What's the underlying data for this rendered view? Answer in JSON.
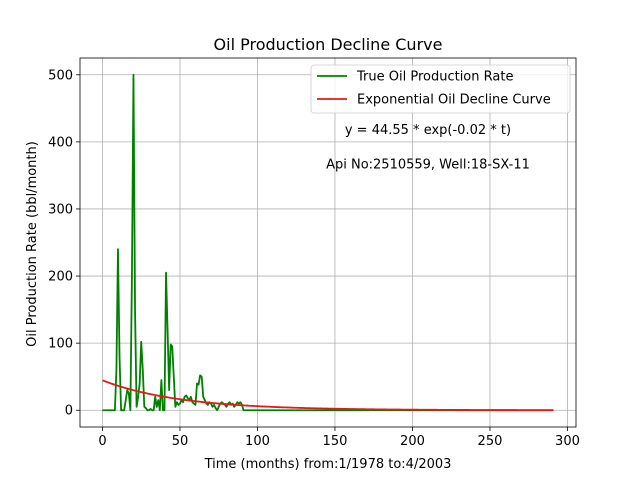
{
  "chart_data": {
    "type": "line",
    "title": "Oil Production Decline Curve",
    "xlabel": "Time (months) from:1/1978 to:4/2003",
    "ylabel": "Oil Production Rate (bbl/month)",
    "xlim": [
      -14.5,
      305.5
    ],
    "ylim": [
      -25,
      525
    ],
    "xticks": [
      0,
      50,
      100,
      150,
      200,
      250,
      300
    ],
    "yticks": [
      0,
      100,
      200,
      300,
      400,
      500
    ],
    "grid": true,
    "legend_position": "top-right",
    "annotations": [
      {
        "text": "y = 44.55 * exp(-0.02 * t)",
        "x": 210,
        "y": 412
      },
      {
        "text": "Api No:2510559, Well:18-SX-11",
        "x": 210,
        "y": 360
      }
    ],
    "series": [
      {
        "name": "True Oil Production Rate",
        "color": "#008000",
        "x": [
          0,
          8,
          9,
          10,
          11,
          12,
          13,
          14,
          15,
          16,
          17,
          18,
          19,
          20,
          21,
          22,
          23,
          24,
          25,
          26,
          27,
          28,
          29,
          30,
          31,
          32,
          33,
          34,
          35,
          36,
          37,
          38,
          39,
          40,
          41,
          42,
          43,
          44,
          45,
          46,
          47,
          48,
          49,
          50,
          51,
          52,
          53,
          54,
          55,
          56,
          57,
          58,
          59,
          60,
          61,
          62,
          63,
          64,
          65,
          66,
          67,
          68,
          69,
          70,
          71,
          72,
          73,
          74,
          75,
          76,
          77,
          78,
          79,
          80,
          81,
          82,
          83,
          84,
          85,
          86,
          87,
          88,
          89,
          90,
          91,
          92,
          93,
          94,
          95,
          96,
          97,
          98,
          99,
          100,
          150,
          200,
          250,
          291
        ],
        "y": [
          0,
          0,
          60,
          240,
          80,
          0,
          0,
          0,
          15,
          30,
          25,
          0,
          200,
          500,
          150,
          5,
          20,
          40,
          102,
          60,
          5,
          3,
          0,
          0,
          2,
          0,
          0,
          20,
          5,
          15,
          0,
          45,
          0,
          0,
          205,
          120,
          30,
          98,
          95,
          50,
          5,
          12,
          8,
          10,
          15,
          12,
          20,
          22,
          18,
          15,
          20,
          12,
          10,
          8,
          40,
          38,
          52,
          50,
          20,
          15,
          10,
          8,
          12,
          10,
          5,
          8,
          3,
          0,
          5,
          10,
          12,
          10,
          8,
          5,
          10,
          12,
          8,
          10,
          5,
          8,
          12,
          10,
          12,
          8,
          0,
          0,
          0,
          0,
          0,
          0,
          0,
          0,
          0,
          0,
          0,
          0,
          0,
          0
        ]
      },
      {
        "name": "Exponential Oil Decline Curve",
        "color": "#e31a1c",
        "formula": {
          "a": 44.55,
          "b": 0.02
        },
        "x_range": [
          0,
          291
        ]
      }
    ]
  }
}
